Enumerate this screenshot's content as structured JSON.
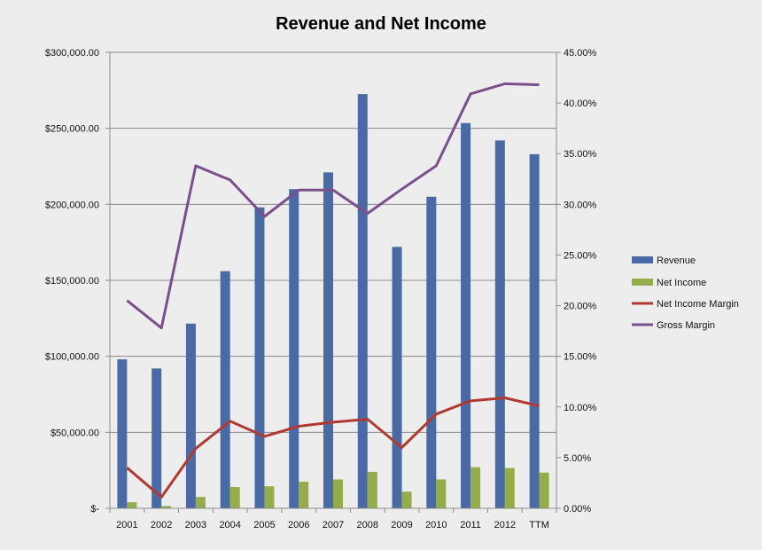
{
  "chart_data": {
    "type": "bar",
    "title": "Revenue and Net Income",
    "categories": [
      "2001",
      "2002",
      "2003",
      "2004",
      "2005",
      "2006",
      "2007",
      "2008",
      "2009",
      "2010",
      "2011",
      "2012",
      "TTM"
    ],
    "left_axis": {
      "ylim": [
        0,
        300000
      ],
      "ticks": [
        0,
        50000,
        100000,
        150000,
        200000,
        250000,
        300000
      ],
      "tick_labels": [
        "$-",
        "$50,000.00",
        "$100,000.00",
        "$150,000.00",
        "$200,000.00",
        "$250,000.00",
        "$300,000.00"
      ]
    },
    "right_axis": {
      "ylim": [
        0,
        45
      ],
      "ticks": [
        0,
        5,
        10,
        15,
        20,
        25,
        30,
        35,
        40,
        45
      ],
      "tick_labels": [
        "0.00%",
        "5.00%",
        "10.00%",
        "15.00%",
        "20.00%",
        "25.00%",
        "30.00%",
        "35.00%",
        "40.00%",
        "45.00%"
      ]
    },
    "grid": true,
    "legend_position": "right",
    "series": [
      {
        "name": "Revenue",
        "kind": "bar",
        "axis": "left",
        "color": "#4a6aa5",
        "values": [
          98000,
          92000,
          121500,
          156000,
          198000,
          210000,
          221000,
          272500,
          172000,
          205000,
          253500,
          242000,
          233000
        ]
      },
      {
        "name": "Net Income",
        "kind": "bar",
        "axis": "left",
        "color": "#94ad4a",
        "values": [
          4000,
          1500,
          7500,
          14000,
          14500,
          17500,
          19000,
          24000,
          11000,
          19000,
          27000,
          26500,
          23500
        ]
      },
      {
        "name": "Net Income Margin",
        "kind": "line",
        "axis": "right",
        "color": "#b03a32",
        "values": [
          4.0,
          1.1,
          5.9,
          8.6,
          7.1,
          8.1,
          8.5,
          8.8,
          6.0,
          9.3,
          10.6,
          10.9,
          10.1
        ]
      },
      {
        "name": "Gross Margin",
        "kind": "line",
        "axis": "right",
        "color": "#7a4f8c",
        "values": [
          20.5,
          17.8,
          33.8,
          32.4,
          28.8,
          31.4,
          31.4,
          29.1,
          31.5,
          33.8,
          40.9,
          41.9,
          41.8
        ]
      }
    ]
  }
}
